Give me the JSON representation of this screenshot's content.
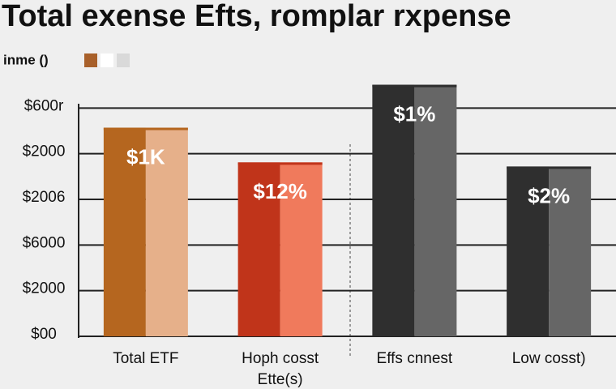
{
  "chart_data": {
    "type": "bar",
    "title": "Total exense Efts, romplar rxpense",
    "legend_label": "inme ()",
    "legend_colors": [
      "#a8602a",
      "#ffffff",
      "#d9d9d9"
    ],
    "categories": [
      "Total ETF",
      "Hoph cosst\nEtte(s)",
      "Effs cnnest",
      "Low cosst)"
    ],
    "values": [
      4.57,
      3.81,
      5.51,
      3.72
    ],
    "value_labels": [
      "$1K",
      "$12%",
      "$1%",
      "$2%"
    ],
    "colors": [
      [
        "#b5661f",
        "#e6b08a"
      ],
      [
        "#c0341a",
        "#f07a5c"
      ],
      [
        "#2f2f2f",
        "#666666"
      ],
      [
        "#2f2f2f",
        "#666666"
      ]
    ],
    "ylim": [
      0,
      6
    ],
    "yticks": [
      {
        "value": 0,
        "label": "$00"
      },
      {
        "value": 1,
        "label": "$2000"
      },
      {
        "value": 2,
        "label": "$6000"
      },
      {
        "value": 3,
        "label": "$2006"
      },
      {
        "value": 4,
        "label": "$2000"
      },
      {
        "value": 5,
        "label": "$600r"
      }
    ],
    "grid": true
  }
}
